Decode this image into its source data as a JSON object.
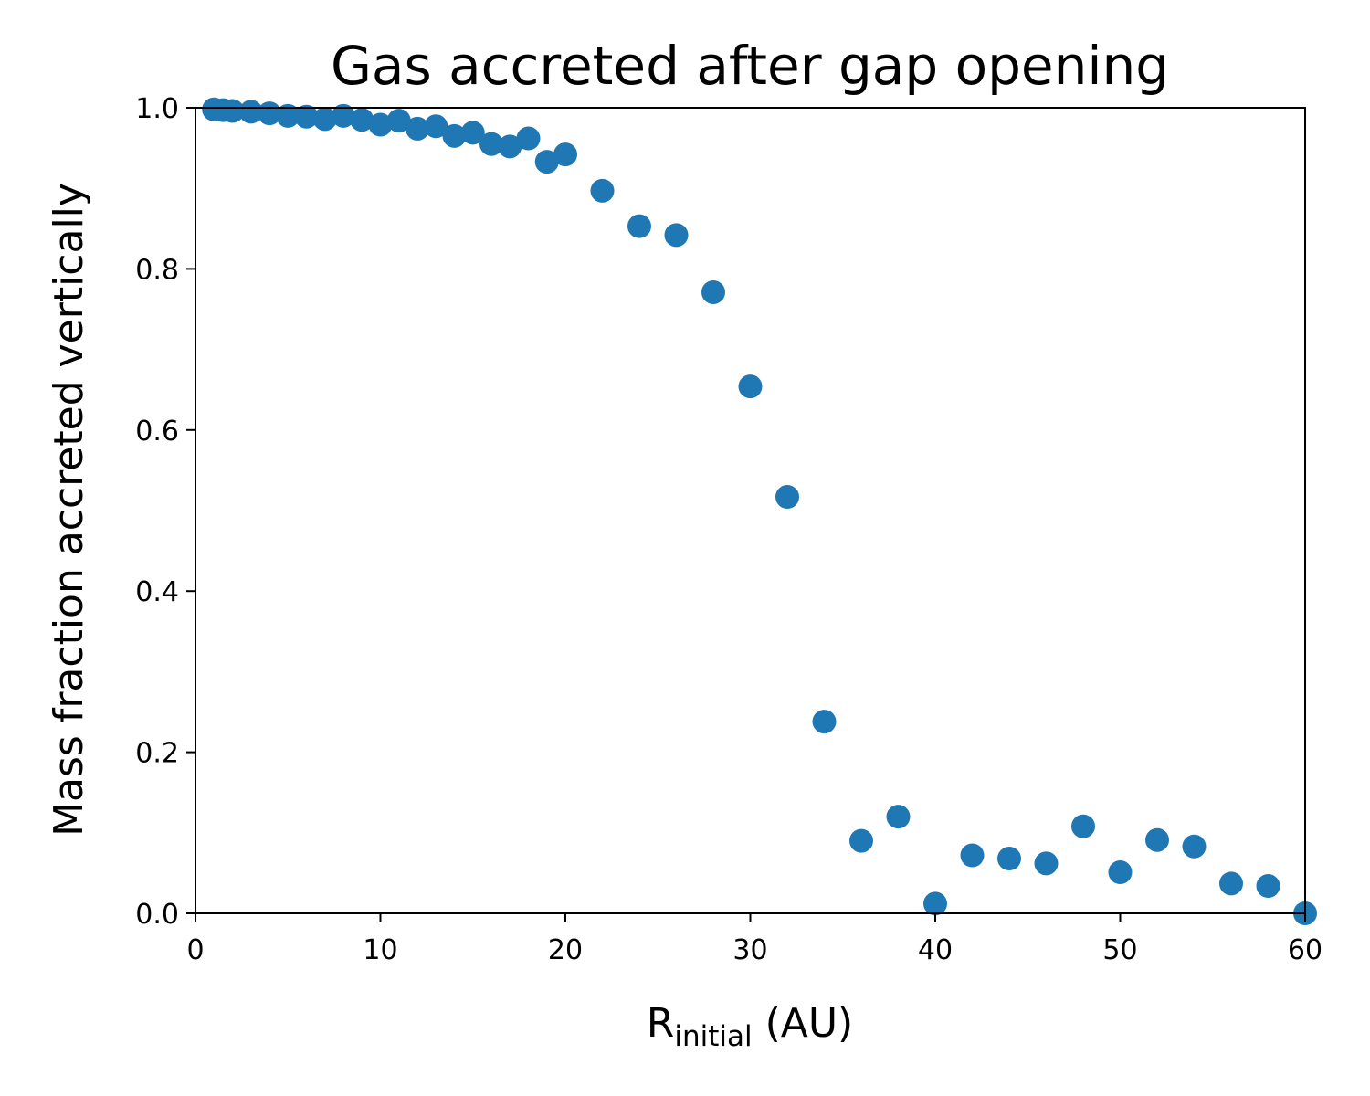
{
  "chart_data": {
    "type": "scatter",
    "title": "Gas accreted after gap opening",
    "xlabel": "R",
    "xlabel_sub": "initial",
    "xlabel_unit": " (AU)",
    "ylabel": "Mass fraction accreted vertically",
    "xlim": [
      0,
      60
    ],
    "ylim": [
      0.0,
      1.0
    ],
    "xticks": [
      "0",
      "10",
      "20",
      "30",
      "40",
      "50",
      "60"
    ],
    "yticks": [
      "0.0",
      "0.2",
      "0.4",
      "0.6",
      "0.8",
      "1.0"
    ],
    "grid": false,
    "marker_color": "#1f77b4",
    "points": [
      {
        "x": 1,
        "y": 0.998
      },
      {
        "x": 1.5,
        "y": 0.997
      },
      {
        "x": 2,
        "y": 0.996
      },
      {
        "x": 3,
        "y": 0.995
      },
      {
        "x": 4,
        "y": 0.993
      },
      {
        "x": 5,
        "y": 0.99
      },
      {
        "x": 6,
        "y": 0.989
      },
      {
        "x": 7,
        "y": 0.986
      },
      {
        "x": 8,
        "y": 0.99
      },
      {
        "x": 9,
        "y": 0.985
      },
      {
        "x": 10,
        "y": 0.979
      },
      {
        "x": 11,
        "y": 0.984
      },
      {
        "x": 12,
        "y": 0.974
      },
      {
        "x": 13,
        "y": 0.977
      },
      {
        "x": 14,
        "y": 0.965
      },
      {
        "x": 15,
        "y": 0.969
      },
      {
        "x": 16,
        "y": 0.955
      },
      {
        "x": 17,
        "y": 0.952
      },
      {
        "x": 18,
        "y": 0.962
      },
      {
        "x": 19,
        "y": 0.933
      },
      {
        "x": 20,
        "y": 0.942
      },
      {
        "x": 22,
        "y": 0.897
      },
      {
        "x": 24,
        "y": 0.853
      },
      {
        "x": 26,
        "y": 0.842
      },
      {
        "x": 28,
        "y": 0.771
      },
      {
        "x": 30,
        "y": 0.654
      },
      {
        "x": 32,
        "y": 0.517
      },
      {
        "x": 34,
        "y": 0.238
      },
      {
        "x": 36,
        "y": 0.09
      },
      {
        "x": 38,
        "y": 0.12
      },
      {
        "x": 40,
        "y": 0.012
      },
      {
        "x": 42,
        "y": 0.072
      },
      {
        "x": 44,
        "y": 0.068
      },
      {
        "x": 46,
        "y": 0.062
      },
      {
        "x": 48,
        "y": 0.108
      },
      {
        "x": 50,
        "y": 0.051
      },
      {
        "x": 52,
        "y": 0.091
      },
      {
        "x": 54,
        "y": 0.083
      },
      {
        "x": 56,
        "y": 0.037
      },
      {
        "x": 58,
        "y": 0.034
      },
      {
        "x": 60,
        "y": 0.0
      }
    ]
  }
}
